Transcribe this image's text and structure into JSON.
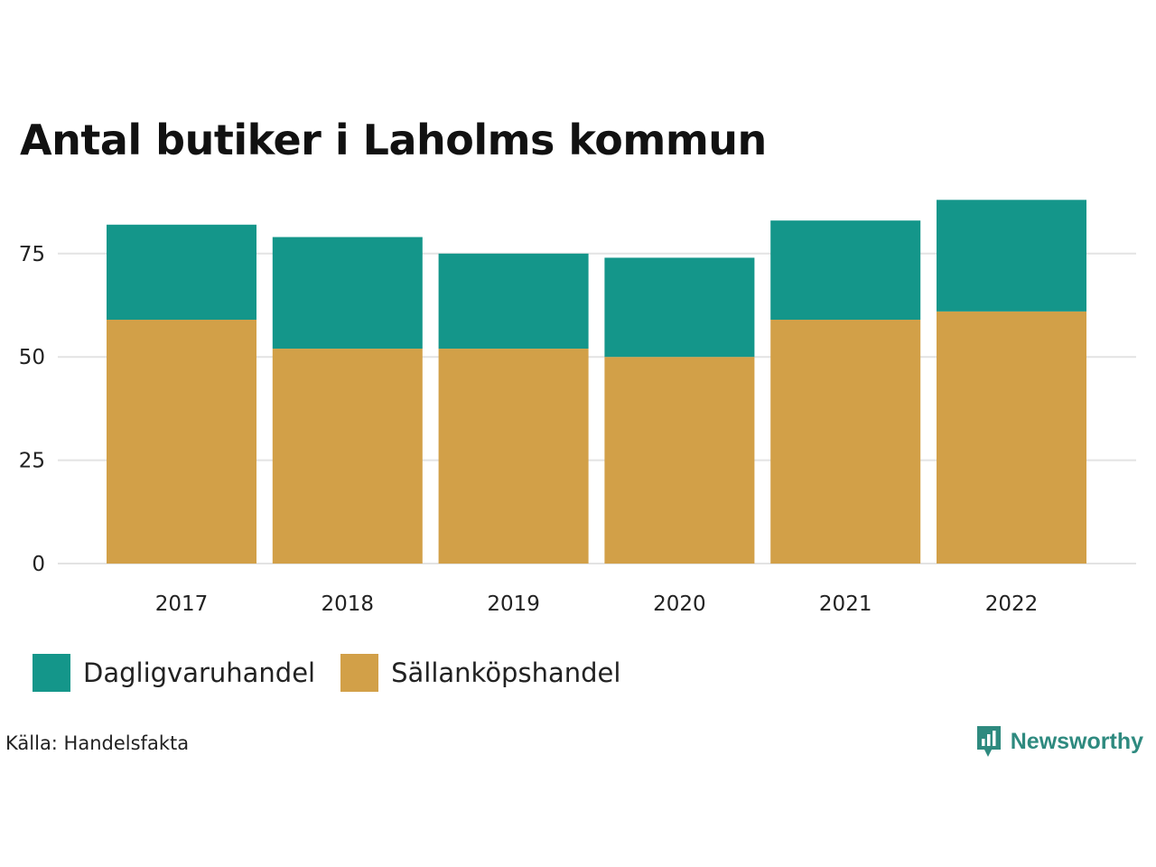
{
  "chart_data": {
    "type": "bar",
    "stacked": true,
    "title": "Antal butiker i Laholms kommun",
    "categories": [
      "2017",
      "2018",
      "2019",
      "2020",
      "2021",
      "2022"
    ],
    "series": [
      {
        "name": "Sällanköpshandel",
        "color": "#d2a048",
        "values": [
          59,
          52,
          52,
          50,
          59,
          61
        ]
      },
      {
        "name": "Dagligvaruhandel",
        "color": "#14968a",
        "values": [
          23,
          27,
          23,
          24,
          24,
          27
        ]
      }
    ],
    "ylim": [
      0,
      90
    ],
    "yticks": [
      0,
      25,
      50,
      75
    ],
    "xlabel": "",
    "ylabel": "",
    "grid": true,
    "legend_position": "bottom-left"
  },
  "legend": [
    {
      "label": "Dagligvaruhandel",
      "color": "#14968a"
    },
    {
      "label": "Sällanköpshandel",
      "color": "#d2a048"
    }
  ],
  "source": "Källa: Handelsfakta",
  "brand": {
    "name": "Newsworthy",
    "icon": "newsworthy-logo-icon",
    "color": "#2e8a7f"
  }
}
